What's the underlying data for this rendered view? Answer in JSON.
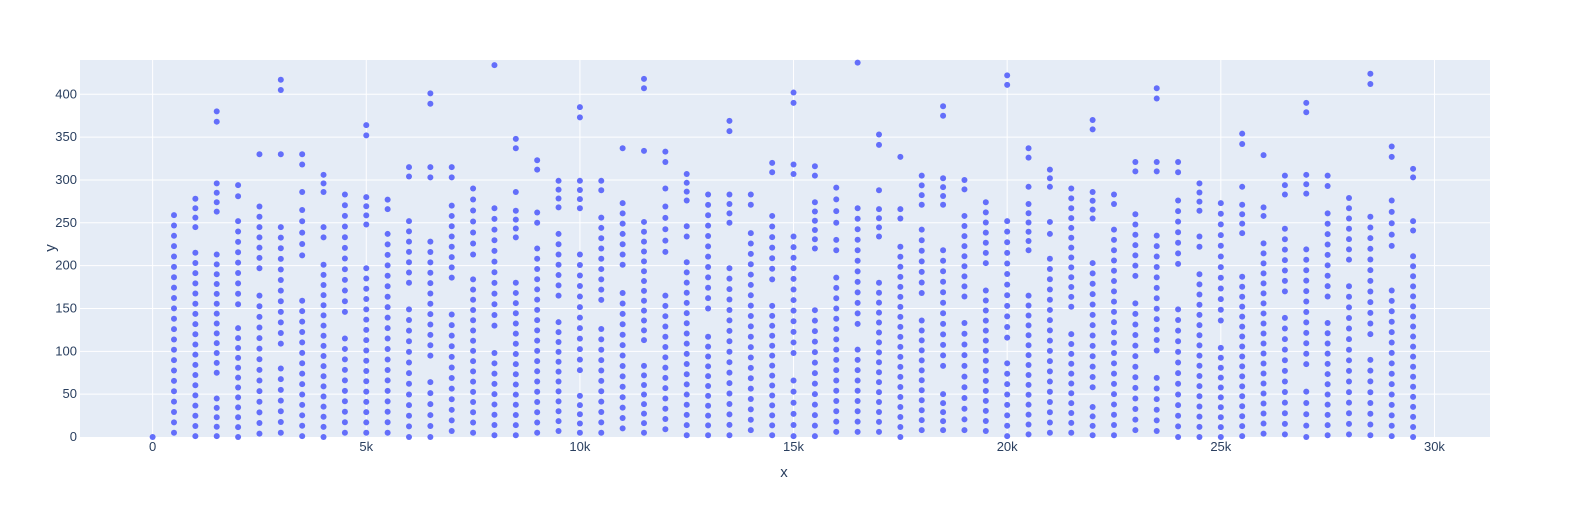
{
  "chart_data": {
    "type": "scatter",
    "title": "",
    "xlabel": "x",
    "ylabel": "y",
    "xlim": [
      -1700,
      31300
    ],
    "ylim": [
      0,
      440
    ],
    "grid": true,
    "xticks": [
      {
        "value": 0,
        "label": "0"
      },
      {
        "value": 5000,
        "label": "5k"
      },
      {
        "value": 10000,
        "label": "10k"
      },
      {
        "value": 15000,
        "label": "15k"
      },
      {
        "value": 20000,
        "label": "20k"
      },
      {
        "value": 25000,
        "label": "25k"
      },
      {
        "value": 30000,
        "label": "30k"
      }
    ],
    "yticks": [
      {
        "value": 0,
        "label": "0"
      },
      {
        "value": 50,
        "label": "50"
      },
      {
        "value": 100,
        "label": "100"
      },
      {
        "value": 150,
        "label": "150"
      },
      {
        "value": 200,
        "label": "200"
      },
      {
        "value": 250,
        "label": "250"
      },
      {
        "value": 300,
        "label": "300"
      },
      {
        "value": 350,
        "label": "350"
      },
      {
        "value": 400,
        "label": "400"
      }
    ],
    "colors": {
      "marker": "#636efa",
      "plot_bg": "#e5ecf6",
      "grid": "#ffffff",
      "text": "#2a3f5f"
    },
    "point_step": 12,
    "columns": [
      {
        "x": 0,
        "segments": [
          [
            0,
            0
          ]
        ]
      },
      {
        "x": 500,
        "segments": [
          [
            5,
            259
          ]
        ]
      },
      {
        "x": 1000,
        "segments": [
          [
            1,
            215
          ],
          [
            245,
            278
          ]
        ]
      },
      {
        "x": 1500,
        "segments": [
          [
            1,
            45
          ],
          [
            75,
            213
          ],
          [
            263,
            296
          ],
          [
            368,
            380
          ]
        ]
      },
      {
        "x": 2000,
        "segments": [
          [
            0,
            127
          ],
          [
            155,
            252
          ],
          [
            281,
            294
          ]
        ]
      },
      {
        "x": 2500,
        "segments": [
          [
            4,
            165
          ],
          [
            197,
            269
          ],
          [
            330,
            330
          ]
        ]
      },
      {
        "x": 3000,
        "segments": [
          [
            5,
            80
          ],
          [
            109,
            245
          ],
          [
            330,
            330
          ],
          [
            405,
            417
          ]
        ]
      },
      {
        "x": 3500,
        "segments": [
          [
            1,
            159
          ],
          [
            212,
            265
          ],
          [
            286,
            286
          ],
          [
            318,
            330
          ]
        ]
      },
      {
        "x": 4000,
        "segments": [
          [
            0,
            201
          ],
          [
            233,
            245
          ],
          [
            286,
            306
          ]
        ]
      },
      {
        "x": 4500,
        "segments": [
          [
            5,
            115
          ],
          [
            146,
            283
          ]
        ]
      },
      {
        "x": 5000,
        "segments": [
          [
            5,
            197
          ],
          [
            248,
            280
          ],
          [
            352,
            364
          ]
        ]
      },
      {
        "x": 5500,
        "segments": [
          [
            5,
            237
          ],
          [
            266,
            277
          ]
        ]
      },
      {
        "x": 6000,
        "segments": [
          [
            0,
            149
          ],
          [
            180,
            252
          ],
          [
            304,
            315
          ]
        ]
      },
      {
        "x": 6500,
        "segments": [
          [
            0,
            64
          ],
          [
            95,
            228
          ],
          [
            303,
            315
          ],
          [
            389,
            401
          ]
        ]
      },
      {
        "x": 7000,
        "segments": [
          [
            7,
            143
          ],
          [
            186,
            270
          ],
          [
            303,
            315
          ]
        ]
      },
      {
        "x": 7500,
        "segments": [
          [
            5,
            184
          ],
          [
            213,
            290
          ]
        ]
      },
      {
        "x": 8000,
        "segments": [
          [
            2,
            98
          ],
          [
            130,
            267
          ],
          [
            434,
            434
          ]
        ]
      },
      {
        "x": 8500,
        "segments": [
          [
            2,
            180
          ],
          [
            233,
            264
          ],
          [
            286,
            286
          ],
          [
            337,
            348
          ]
        ]
      },
      {
        "x": 9000,
        "segments": [
          [
            5,
            220
          ],
          [
            250,
            262
          ],
          [
            312,
            323
          ]
        ]
      },
      {
        "x": 9500,
        "segments": [
          [
            7,
            134
          ],
          [
            165,
            237
          ],
          [
            268,
            299
          ]
        ]
      },
      {
        "x": 10000,
        "segments": [
          [
            5,
            48
          ],
          [
            78,
            213
          ],
          [
            267,
            299
          ],
          [
            373,
            385
          ]
        ]
      },
      {
        "x": 10500,
        "segments": [
          [
            5,
            126
          ],
          [
            160,
            256
          ],
          [
            288,
            299
          ]
        ]
      },
      {
        "x": 11000,
        "segments": [
          [
            10,
            168
          ],
          [
            201,
            273
          ],
          [
            337,
            337
          ]
        ]
      },
      {
        "x": 11500,
        "segments": [
          [
            5,
            83
          ],
          [
            113,
            251
          ],
          [
            334,
            334
          ],
          [
            407,
            418
          ]
        ]
      },
      {
        "x": 12000,
        "segments": [
          [
            9,
            165
          ],
          [
            216,
            269
          ],
          [
            290,
            290
          ],
          [
            321,
            333
          ]
        ]
      },
      {
        "x": 12500,
        "segments": [
          [
            2,
            204
          ],
          [
            234,
            246
          ],
          [
            276,
            307
          ]
        ]
      },
      {
        "x": 13000,
        "segments": [
          [
            2,
            117
          ],
          [
            150,
            283
          ]
        ]
      },
      {
        "x": 13500,
        "segments": [
          [
            2,
            197
          ],
          [
            250,
            283
          ],
          [
            357,
            369
          ]
        ]
      },
      {
        "x": 14000,
        "segments": [
          [
            8,
            238
          ],
          [
            271,
            283
          ]
        ]
      },
      {
        "x": 14500,
        "segments": [
          [
            2,
            153
          ],
          [
            184,
            258
          ],
          [
            309,
            320
          ]
        ]
      },
      {
        "x": 15000,
        "segments": [
          [
            1,
            66
          ],
          [
            98,
            234
          ],
          [
            307,
            318
          ],
          [
            390,
            402
          ]
        ]
      },
      {
        "x": 15500,
        "segments": [
          [
            1,
            148
          ],
          [
            220,
            274
          ],
          [
            305,
            316
          ]
        ]
      },
      {
        "x": 16000,
        "segments": [
          [
            6,
            186
          ],
          [
            218,
            230
          ],
          [
            250,
            291
          ]
        ]
      },
      {
        "x": 16500,
        "segments": [
          [
            6,
            102
          ],
          [
            132,
            267
          ],
          [
            437,
            437
          ]
        ]
      },
      {
        "x": 17000,
        "segments": [
          [
            6,
            180
          ],
          [
            234,
            266
          ],
          [
            288,
            288
          ],
          [
            341,
            353
          ]
        ]
      },
      {
        "x": 17500,
        "segments": [
          [
            0,
            222
          ],
          [
            255,
            266
          ],
          [
            327,
            327
          ]
        ]
      },
      {
        "x": 18000,
        "segments": [
          [
            8,
            136
          ],
          [
            168,
            242
          ],
          [
            271,
            305
          ]
        ]
      },
      {
        "x": 18500,
        "segments": [
          [
            8,
            50
          ],
          [
            83,
            218
          ],
          [
            271,
            302
          ],
          [
            375,
            386
          ]
        ]
      },
      {
        "x": 19000,
        "segments": [
          [
            8,
            133
          ],
          [
            164,
            258
          ],
          [
            289,
            300
          ]
        ]
      },
      {
        "x": 19500,
        "segments": [
          [
            7,
            171
          ],
          [
            203,
            274
          ]
        ]
      },
      {
        "x": 20000,
        "segments": [
          [
            1,
            86
          ],
          [
            116,
            252
          ],
          [
            411,
            422
          ]
        ]
      },
      {
        "x": 20500,
        "segments": [
          [
            3,
            165
          ],
          [
            218,
            272
          ],
          [
            292,
            292
          ],
          [
            326,
            337
          ]
        ]
      },
      {
        "x": 21000,
        "segments": [
          [
            5,
            208
          ],
          [
            237,
            251
          ],
          [
            292,
            312
          ]
        ]
      },
      {
        "x": 21500,
        "segments": [
          [
            5,
            120
          ],
          [
            152,
            290
          ]
        ]
      },
      {
        "x": 22000,
        "segments": [
          [
            2,
            35
          ],
          [
            58,
            203
          ],
          [
            255,
            286
          ],
          [
            359,
            370
          ]
        ]
      },
      {
        "x": 22500,
        "segments": [
          [
            2,
            242
          ],
          [
            272,
            283
          ]
        ]
      },
      {
        "x": 23000,
        "segments": [
          [
            8,
            156
          ],
          [
            188,
            260
          ],
          [
            310,
            321
          ]
        ]
      },
      {
        "x": 23500,
        "segments": [
          [
            7,
            69
          ],
          [
            101,
            235
          ],
          [
            310,
            321
          ],
          [
            395,
            407
          ]
        ]
      },
      {
        "x": 24000,
        "segments": [
          [
            0,
            149
          ],
          [
            202,
            276
          ],
          [
            309,
            321
          ]
        ]
      },
      {
        "x": 24500,
        "segments": [
          [
            0,
            190
          ],
          [
            222,
            234
          ],
          [
            264,
            296
          ]
        ]
      },
      {
        "x": 25000,
        "segments": [
          [
            0,
            104
          ],
          [
            136,
            273
          ]
        ]
      },
      {
        "x": 25500,
        "segments": [
          [
            1,
            187
          ],
          [
            238,
            271
          ],
          [
            292,
            292
          ],
          [
            342,
            354
          ]
        ]
      },
      {
        "x": 26000,
        "segments": [
          [
            4,
            226
          ],
          [
            258,
            268
          ],
          [
            329,
            329
          ]
        ]
      },
      {
        "x": 26500,
        "segments": [
          [
            3,
            139
          ],
          [
            170,
            243
          ],
          [
            283,
            305
          ]
        ]
      },
      {
        "x": 27000,
        "segments": [
          [
            0,
            53
          ],
          [
            85,
            219
          ],
          [
            284,
            306
          ],
          [
            379,
            390
          ]
        ]
      },
      {
        "x": 27500,
        "segments": [
          [
            2,
            133
          ],
          [
            164,
            261
          ],
          [
            293,
            305
          ]
        ]
      },
      {
        "x": 28000,
        "segments": [
          [
            3,
            176
          ],
          [
            207,
            279
          ]
        ]
      },
      {
        "x": 28500,
        "segments": [
          [
            2,
            90
          ],
          [
            120,
            257
          ],
          [
            412,
            424
          ]
        ]
      },
      {
        "x": 29000,
        "segments": [
          [
            1,
            171
          ],
          [
            223,
            276
          ],
          [
            327,
            339
          ]
        ]
      },
      {
        "x": 29500,
        "segments": [
          [
            0,
            211
          ],
          [
            241,
            252
          ],
          [
            303,
            313
          ]
        ]
      }
    ]
  }
}
